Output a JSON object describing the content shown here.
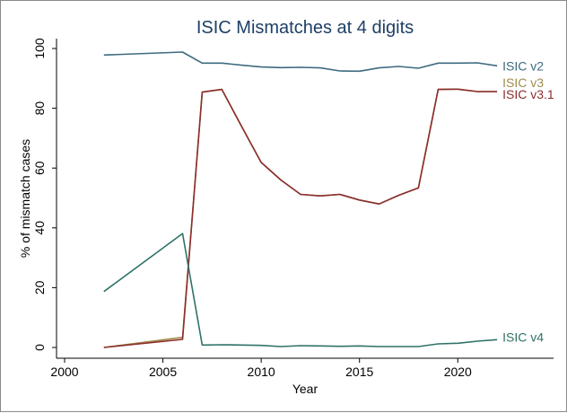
{
  "chart_data": {
    "type": "line",
    "title": "ISIC Mismatches at 4 digits",
    "xlabel": "Year",
    "ylabel": "% of mismatch cases",
    "xlim": [
      2000,
      2024.5
    ],
    "ylim": [
      0,
      100
    ],
    "xticks": [
      2000,
      2005,
      2010,
      2015,
      2020
    ],
    "yticks": [
      0,
      20,
      40,
      60,
      80,
      100
    ],
    "grid": false,
    "legend": "none (series labels at line ends)",
    "series": [
      {
        "name": "ISIC v2",
        "color": "#3e6a80",
        "x": [
          2002,
          2006,
          2007,
          2008,
          2009,
          2010,
          2011,
          2012,
          2013,
          2014,
          2015,
          2016,
          2017,
          2018,
          2019,
          2020,
          2021,
          2022
        ],
        "y": [
          97.8,
          98.8,
          95.1,
          95.1,
          94.4,
          93.8,
          93.6,
          93.7,
          93.5,
          92.5,
          92.4,
          93.5,
          94.0,
          93.4,
          95.1,
          95.1,
          95.2,
          94.2
        ]
      },
      {
        "name": "ISIC v3",
        "color": "#a08c4a",
        "x": [
          2002,
          2006,
          2007,
          2008,
          2009,
          2010,
          2011,
          2012,
          2013,
          2014,
          2015,
          2016,
          2017,
          2018,
          2019,
          2020,
          2021,
          2022
        ],
        "y": [
          0.0,
          3.4,
          85.4,
          86.3,
          74.0,
          61.9,
          56.0,
          51.2,
          50.7,
          51.2,
          49.3,
          48.0,
          50.9,
          53.4,
          86.3,
          86.4,
          85.6,
          85.6
        ]
      },
      {
        "name": "ISIC v3.1",
        "color": "#8b2e2e",
        "x": [
          2002,
          2006,
          2007,
          2008,
          2009,
          2010,
          2011,
          2012,
          2013,
          2014,
          2015,
          2016,
          2017,
          2018,
          2019,
          2020,
          2021,
          2022
        ],
        "y": [
          0.0,
          2.7,
          85.4,
          86.3,
          74.0,
          61.9,
          56.0,
          51.2,
          50.7,
          51.2,
          49.3,
          48.0,
          50.9,
          53.4,
          86.3,
          86.4,
          85.6,
          85.6
        ]
      },
      {
        "name": "ISIC v4",
        "color": "#2f7268",
        "x": [
          2002,
          2006,
          2007,
          2008,
          2009,
          2010,
          2011,
          2012,
          2013,
          2014,
          2015,
          2016,
          2017,
          2018,
          2019,
          2020,
          2021,
          2022
        ],
        "y": [
          18.7,
          38.1,
          0.8,
          0.9,
          0.8,
          0.7,
          0.3,
          0.6,
          0.5,
          0.4,
          0.5,
          0.3,
          0.3,
          0.3,
          1.2,
          1.4,
          2.1,
          2.6
        ]
      }
    ]
  }
}
